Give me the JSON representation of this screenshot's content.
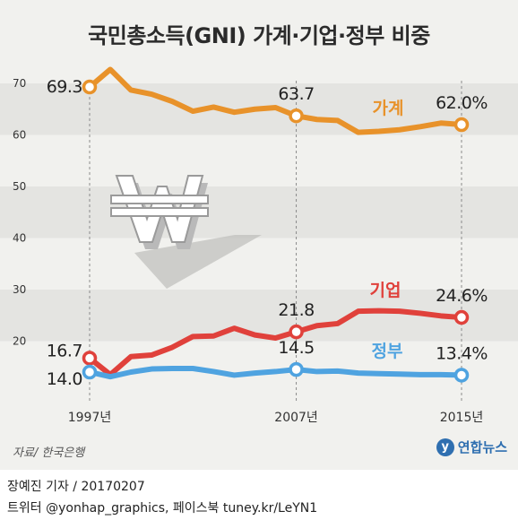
{
  "title": "국민총소득(GNI) 가계·기업·정부 비중",
  "source": "자료/ 한국은행",
  "logo_text": "연합뉴스",
  "footer": {
    "credit": "장예진 기자 / 20170207",
    "social": "트위터 @yonhap_graphics, 페이스북 tuney.kr/LeYN1"
  },
  "chart_data": {
    "type": "line",
    "title": "국민총소득(GNI) 가계·기업·정부 비중",
    "xlim": [
      1997,
      2015
    ],
    "ylim": [
      10,
      75
    ],
    "x_tick_labels": [
      {
        "x": 1997,
        "label": "1997년"
      },
      {
        "x": 2007,
        "label": "2007년"
      },
      {
        "x": 2015,
        "label": "2015년"
      }
    ],
    "y_ticks": [
      20,
      30,
      40,
      50,
      60,
      70
    ],
    "grid_bands": true,
    "series": [
      {
        "name": "가계",
        "color": "#e8922a",
        "x": [
          1997,
          1998,
          1999,
          2000,
          2001,
          2002,
          2003,
          2004,
          2005,
          2006,
          2007,
          2008,
          2009,
          2010,
          2011,
          2012,
          2013,
          2014,
          2015
        ],
        "values": [
          69.3,
          72.7,
          68.7,
          67.9,
          66.5,
          64.6,
          65.4,
          64.4,
          65.0,
          65.3,
          63.7,
          63.0,
          62.8,
          60.5,
          60.7,
          61.0,
          61.6,
          62.3,
          62.0
        ],
        "labeled": [
          {
            "x": 1997,
            "value": 69.3,
            "text": "69.3"
          },
          {
            "x": 2007,
            "value": 63.7,
            "text": "63.7"
          },
          {
            "x": 2015,
            "value": 62.0,
            "text": "62.0%"
          }
        ]
      },
      {
        "name": "기업",
        "color": "#e0413b",
        "x": [
          1997,
          1998,
          1999,
          2000,
          2001,
          2002,
          2003,
          2004,
          2005,
          2006,
          2007,
          2008,
          2009,
          2010,
          2011,
          2012,
          2013,
          2014,
          2015
        ],
        "values": [
          16.7,
          13.5,
          17.0,
          17.3,
          18.8,
          20.9,
          21.0,
          22.5,
          21.2,
          20.6,
          21.8,
          23.0,
          23.4,
          25.8,
          25.9,
          25.8,
          25.4,
          24.9,
          24.6
        ],
        "labeled": [
          {
            "x": 1997,
            "value": 16.7,
            "text": "16.7"
          },
          {
            "x": 2007,
            "value": 21.8,
            "text": "21.8"
          },
          {
            "x": 2015,
            "value": 24.6,
            "text": "24.6%"
          }
        ]
      },
      {
        "name": "정부",
        "color": "#4fa3e0",
        "x": [
          1997,
          1998,
          1999,
          2000,
          2001,
          2002,
          2003,
          2004,
          2005,
          2006,
          2007,
          2008,
          2009,
          2010,
          2011,
          2012,
          2013,
          2014,
          2015
        ],
        "values": [
          14.0,
          13.1,
          14.0,
          14.6,
          14.7,
          14.7,
          14.1,
          13.4,
          13.8,
          14.1,
          14.5,
          14.1,
          14.2,
          13.8,
          13.7,
          13.6,
          13.5,
          13.5,
          13.4
        ],
        "labeled": [
          {
            "x": 1997,
            "value": 14.0,
            "text": "14.0"
          },
          {
            "x": 2007,
            "value": 14.5,
            "text": "14.5"
          },
          {
            "x": 2015,
            "value": 13.4,
            "text": "13.4%"
          }
        ]
      }
    ]
  }
}
